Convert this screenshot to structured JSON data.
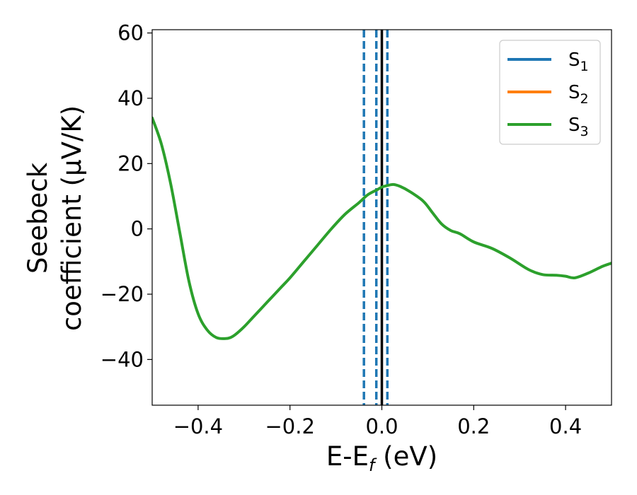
{
  "chart_data": {
    "type": "line",
    "title": "",
    "xlabel": {
      "main": "E-E",
      "sub": "f",
      "suffix": " (eV)"
    },
    "ylabel": {
      "line1": "Seebeck",
      "line2": "coefficient  (μV/K)"
    },
    "xlim": [
      -0.5,
      0.5
    ],
    "ylim": [
      -54,
      61
    ],
    "xticks": [
      -0.4,
      -0.2,
      0.0,
      0.2,
      0.4
    ],
    "xtick_labels": [
      "−0.4",
      "−0.2",
      "0.0",
      "0.2",
      "0.4"
    ],
    "yticks": [
      -40,
      -20,
      0,
      20,
      40,
      60
    ],
    "ytick_labels": [
      "−40",
      "−20",
      "0",
      "20",
      "40",
      "60"
    ],
    "grid": false,
    "legend_position": "top-right",
    "colors": {
      "s1": "#1f77b4",
      "s2": "#ff7f0e",
      "s3": "#2ca02c",
      "fermi": "#000000"
    },
    "series": [
      {
        "name": "S",
        "sub": "1",
        "color": "#1f77b4"
      },
      {
        "name": "S",
        "sub": "2",
        "color": "#ff7f0e"
      },
      {
        "name": "S",
        "sub": "3",
        "color": "#2ca02c",
        "x": [
          -0.5,
          -0.48,
          -0.46,
          -0.44,
          -0.42,
          -0.4,
          -0.38,
          -0.36,
          -0.34,
          -0.33,
          -0.32,
          -0.3,
          -0.28,
          -0.25,
          -0.22,
          -0.2,
          -0.17,
          -0.14,
          -0.11,
          -0.08,
          -0.05,
          -0.03,
          -0.01,
          0.0,
          0.01,
          0.025,
          0.04,
          0.06,
          0.09,
          0.11,
          0.13,
          0.15,
          0.17,
          0.2,
          0.24,
          0.28,
          0.32,
          0.35,
          0.38,
          0.4,
          0.42,
          0.45,
          0.48,
          0.5
        ],
        "y": [
          34,
          26,
          14,
          -1,
          -16,
          -26,
          -31,
          -33.3,
          -33.6,
          -33.3,
          -32.5,
          -30,
          -27,
          -22.5,
          -18,
          -15,
          -10,
          -5,
          0,
          4.5,
          8,
          10.5,
          12,
          12.8,
          13.2,
          13.6,
          13,
          11.5,
          8.5,
          5,
          1.5,
          -0.5,
          -1.5,
          -4,
          -6,
          -9,
          -12.5,
          -14,
          -14.2,
          -14.5,
          -15,
          -13.5,
          -11.5,
          -10.5
        ]
      }
    ],
    "vlines": [
      {
        "x": -0.039,
        "style": "dashed",
        "color": "#1f77b4"
      },
      {
        "x": -0.012,
        "style": "dashed",
        "color": "#1f77b4"
      },
      {
        "x": 0.0,
        "style": "solid",
        "color": "#000000"
      },
      {
        "x": 0.012,
        "style": "dashed",
        "color": "#1f77b4"
      }
    ]
  }
}
